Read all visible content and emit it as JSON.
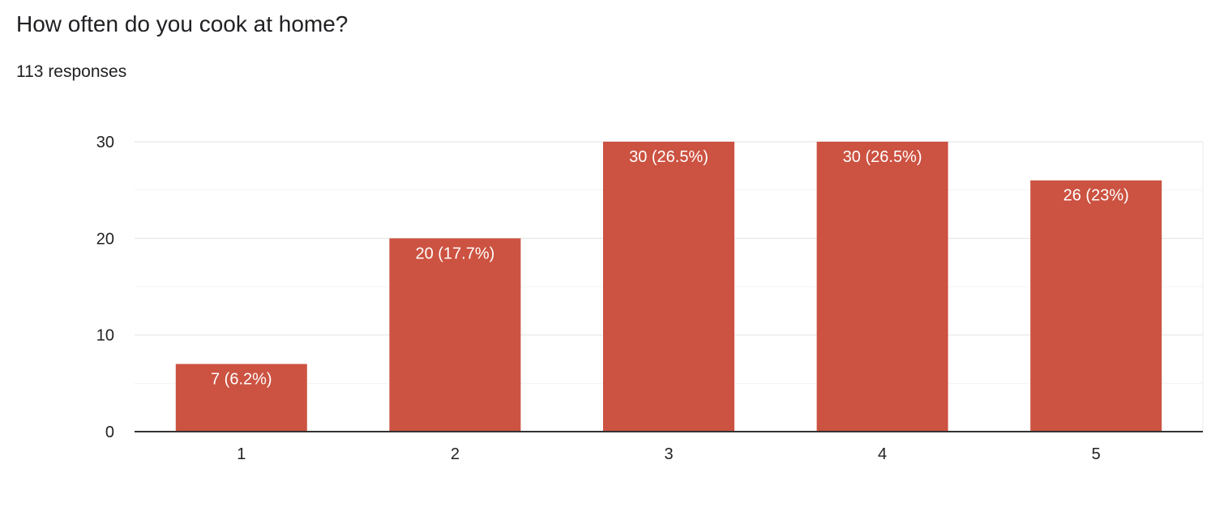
{
  "question": {
    "title": "How often do you cook at home?",
    "responses": "113 responses"
  },
  "colors": {
    "bar": "#cc5241",
    "grid": "#ebebeb",
    "axis": "#333333",
    "text": "#222222",
    "label": "#ffffff"
  },
  "chart_data": {
    "type": "bar",
    "categories": [
      "1",
      "2",
      "3",
      "4",
      "5"
    ],
    "values": [
      7,
      20,
      30,
      30,
      26
    ],
    "data_labels": [
      "7 (6.2%)",
      "20 (17.7%)",
      "30 (26.5%)",
      "30 (26.5%)",
      "26 (23%)"
    ],
    "ylim": [
      0,
      30
    ],
    "yticks": [
      0,
      10,
      20,
      30
    ],
    "ytick_labels": [
      "0",
      "10",
      "20",
      "30"
    ],
    "minor_gridlines": [
      5,
      15,
      25
    ],
    "grid": true,
    "legend": "none",
    "title": "",
    "xlabel": "",
    "ylabel": ""
  }
}
